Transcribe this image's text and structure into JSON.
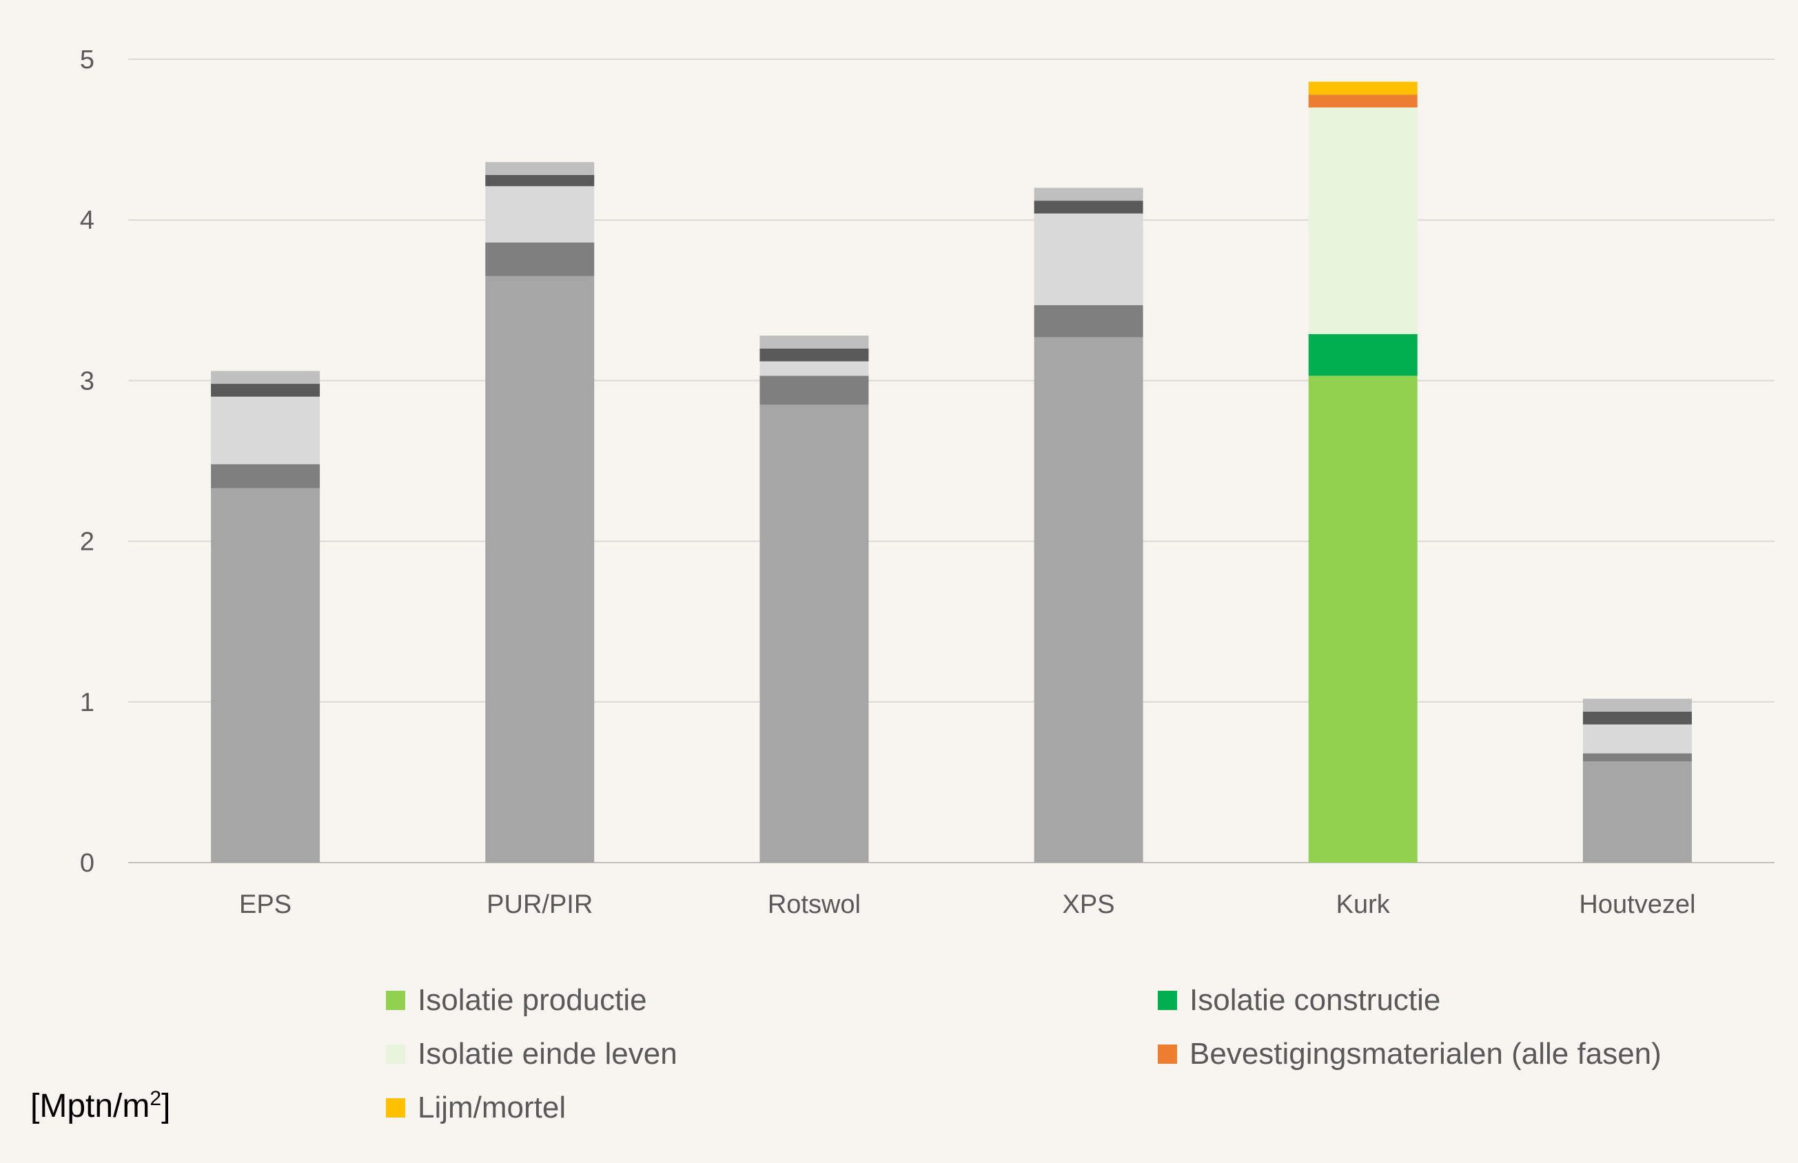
{
  "chart_data": {
    "type": "bar",
    "stacked": true,
    "categories": [
      "EPS",
      "PUR/PIR",
      "Rotswol",
      "XPS",
      "Kurk",
      "Houtvezel"
    ],
    "ylim": [
      0,
      5
    ],
    "yticks": [
      "0",
      "1",
      "2",
      "3",
      "4",
      "5"
    ],
    "grid": true,
    "legend_position": "bottom",
    "unit_label": {
      "main": "[Mptn/m",
      "sup": "2",
      "close": "]"
    },
    "series": [
      {
        "name": "Isolatie productie",
        "color": "#92d050",
        "default_color": "#a6a6a6",
        "values": [
          2.33,
          3.65,
          2.85,
          3.27,
          3.03,
          0.63
        ]
      },
      {
        "name": "Isolatie constructie",
        "color": "#00b050",
        "default_color": "#7f7f7f",
        "values": [
          0.15,
          0.21,
          0.18,
          0.2,
          0.26,
          0.05
        ]
      },
      {
        "name": "Isolatie einde leven",
        "color": "#e8f4dc",
        "default_color": "#d9d9d9",
        "values": [
          0.42,
          0.35,
          0.09,
          0.57,
          1.41,
          0.18
        ]
      },
      {
        "name": "Bevestigingsmaterialen (alle fasen)",
        "color": "#ed7d31",
        "default_color": "#595959",
        "values": [
          0.08,
          0.07,
          0.08,
          0.08,
          0.08,
          0.08
        ]
      },
      {
        "name": "Lijm/mortel",
        "color": "#ffc000",
        "default_color": "#bfbfbf",
        "values": [
          0.08,
          0.08,
          0.08,
          0.08,
          0.08,
          0.08
        ]
      }
    ],
    "colored_category": "Kurk",
    "gridline_color": "#d9d9d9",
    "axis_color": "#bfbfbf"
  }
}
